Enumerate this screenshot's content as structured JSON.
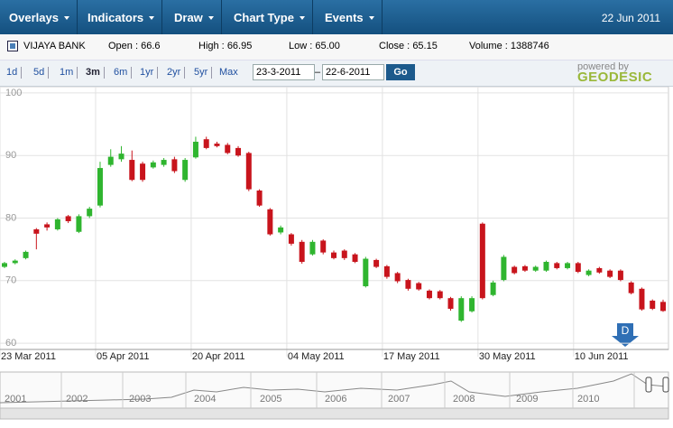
{
  "menu": [
    "Overlays",
    "Indicators",
    "Draw",
    "Chart Type",
    "Events"
  ],
  "date": "22 Jun 2011",
  "stock": {
    "name": "VIJAYA BANK",
    "quote": [
      {
        "label": "Open :",
        "value": "66.6"
      },
      {
        "label": "High :",
        "value": "66.95"
      },
      {
        "label": "Low :",
        "value": "65.00"
      },
      {
        "label": "Close :",
        "value": "65.15"
      },
      {
        "label": "Volume :",
        "value": "1388746"
      }
    ]
  },
  "ranges": [
    "1d",
    "5d",
    "1m",
    "3m",
    "6m",
    "1yr",
    "2yr",
    "5yr",
    "Max"
  ],
  "from_date": "23-3-2011",
  "date_dash": "–",
  "to_date": "22-6-2011",
  "go": "Go",
  "powered_by": "powered by",
  "brand": "GEODESIC",
  "dividend_marker": "D",
  "navigator_years": [
    "2001",
    "2002",
    "2003",
    "2004",
    "2005",
    "2006",
    "2007",
    "2008",
    "2009",
    "2010"
  ],
  "chart_data": {
    "type": "candlestick",
    "categories": [
      "23 Mar 2011",
      null,
      null,
      null,
      null,
      null,
      null,
      null,
      null,
      "05 Apr 2011",
      null,
      null,
      null,
      null,
      null,
      null,
      null,
      null,
      "20 Apr 2011",
      null,
      null,
      null,
      null,
      null,
      null,
      null,
      null,
      "04 May 2011",
      null,
      null,
      null,
      null,
      null,
      null,
      null,
      null,
      "17 May 2011",
      null,
      null,
      null,
      null,
      null,
      null,
      null,
      null,
      "30 May 2011",
      null,
      null,
      null,
      null,
      null,
      null,
      null,
      null,
      "10 Jun 2011",
      null,
      null,
      null,
      null,
      null,
      null,
      null,
      null
    ],
    "open": [
      72.2,
      72.8,
      73.6,
      78.2,
      79.0,
      78.2,
      80.3,
      77.8,
      80.3,
      82.0,
      88.5,
      89.4,
      89.3,
      88.7,
      88.1,
      88.5,
      89.4,
      86.1,
      89.7,
      92.6,
      91.9,
      91.7,
      91.2,
      90.4,
      84.4,
      81.4,
      77.7,
      77.4,
      76.2,
      74.2,
      76.4,
      74.5,
      74.8,
      74.2,
      69.1,
      73.3,
      72.3,
      71.2,
      70.1,
      69.6,
      68.4,
      68.3,
      67.2,
      63.6,
      65.1,
      79.1,
      67.7,
      70.1,
      72.2,
      72.3,
      71.6,
      71.6,
      72.8,
      72.0,
      72.8,
      70.9,
      72.0,
      71.6,
      71.6,
      69.7,
      68.7,
      66.8,
      66.6
    ],
    "high": [
      73.0,
      73.4,
      74.8,
      78.4,
      79.3,
      80.0,
      80.5,
      80.6,
      81.8,
      89.0,
      91.0,
      91.5,
      90.8,
      89.0,
      89.2,
      89.6,
      89.8,
      89.6,
      93.0,
      93.0,
      92.2,
      92.0,
      91.5,
      90.6,
      84.6,
      81.6,
      78.8,
      77.6,
      76.5,
      76.5,
      76.6,
      74.8,
      75.0,
      74.4,
      73.8,
      73.5,
      72.5,
      71.4,
      70.3,
      69.8,
      68.6,
      68.5,
      67.4,
      67.5,
      67.5,
      79.3,
      70.0,
      74.1,
      72.4,
      72.5,
      72.4,
      73.2,
      73.0,
      73.0,
      73.0,
      71.8,
      72.2,
      71.8,
      71.8,
      69.9,
      68.9,
      67.0,
      66.95
    ],
    "low": [
      72.0,
      72.6,
      73.4,
      75.0,
      78.0,
      78.0,
      79.2,
      77.6,
      80.0,
      81.7,
      88.2,
      89.0,
      85.9,
      85.8,
      87.9,
      88.2,
      87.2,
      85.8,
      89.5,
      91.0,
      91.3,
      90.2,
      89.8,
      84.3,
      81.8,
      77.2,
      77.4,
      75.6,
      72.7,
      74.0,
      74.2,
      73.4,
      73.3,
      72.8,
      68.9,
      72.0,
      70.3,
      69.6,
      68.4,
      68.4,
      67.0,
      67.0,
      65.2,
      63.4,
      64.9,
      67.0,
      67.5,
      69.9,
      71.0,
      71.4,
      71.4,
      71.4,
      71.8,
      71.8,
      71.2,
      70.7,
      71.1,
      70.4,
      69.9,
      67.8,
      65.2,
      65.3,
      65.0
    ],
    "close": [
      72.8,
      73.2,
      74.6,
      77.5,
      78.5,
      79.8,
      79.5,
      80.3,
      81.5,
      88.0,
      89.8,
      90.3,
      86.1,
      86.1,
      88.9,
      89.3,
      87.5,
      89.3,
      92.2,
      91.2,
      91.5,
      90.4,
      90.0,
      84.6,
      82.0,
      77.4,
      78.5,
      75.9,
      73.0,
      76.2,
      74.5,
      73.6,
      73.6,
      73.0,
      73.5,
      72.2,
      70.6,
      69.9,
      68.7,
      68.6,
      67.2,
      67.2,
      65.5,
      67.2,
      67.2,
      67.2,
      69.7,
      73.8,
      71.2,
      71.6,
      72.2,
      73.0,
      72.0,
      72.8,
      71.4,
      71.6,
      71.3,
      70.6,
      70.1,
      68.0,
      65.4,
      65.5,
      65.15
    ],
    "up_color": "#2fb52f",
    "down_color": "#c8141c",
    "ylim": [
      59,
      101
    ],
    "yticks": [
      60,
      70,
      80,
      90,
      100
    ],
    "grid": true
  }
}
